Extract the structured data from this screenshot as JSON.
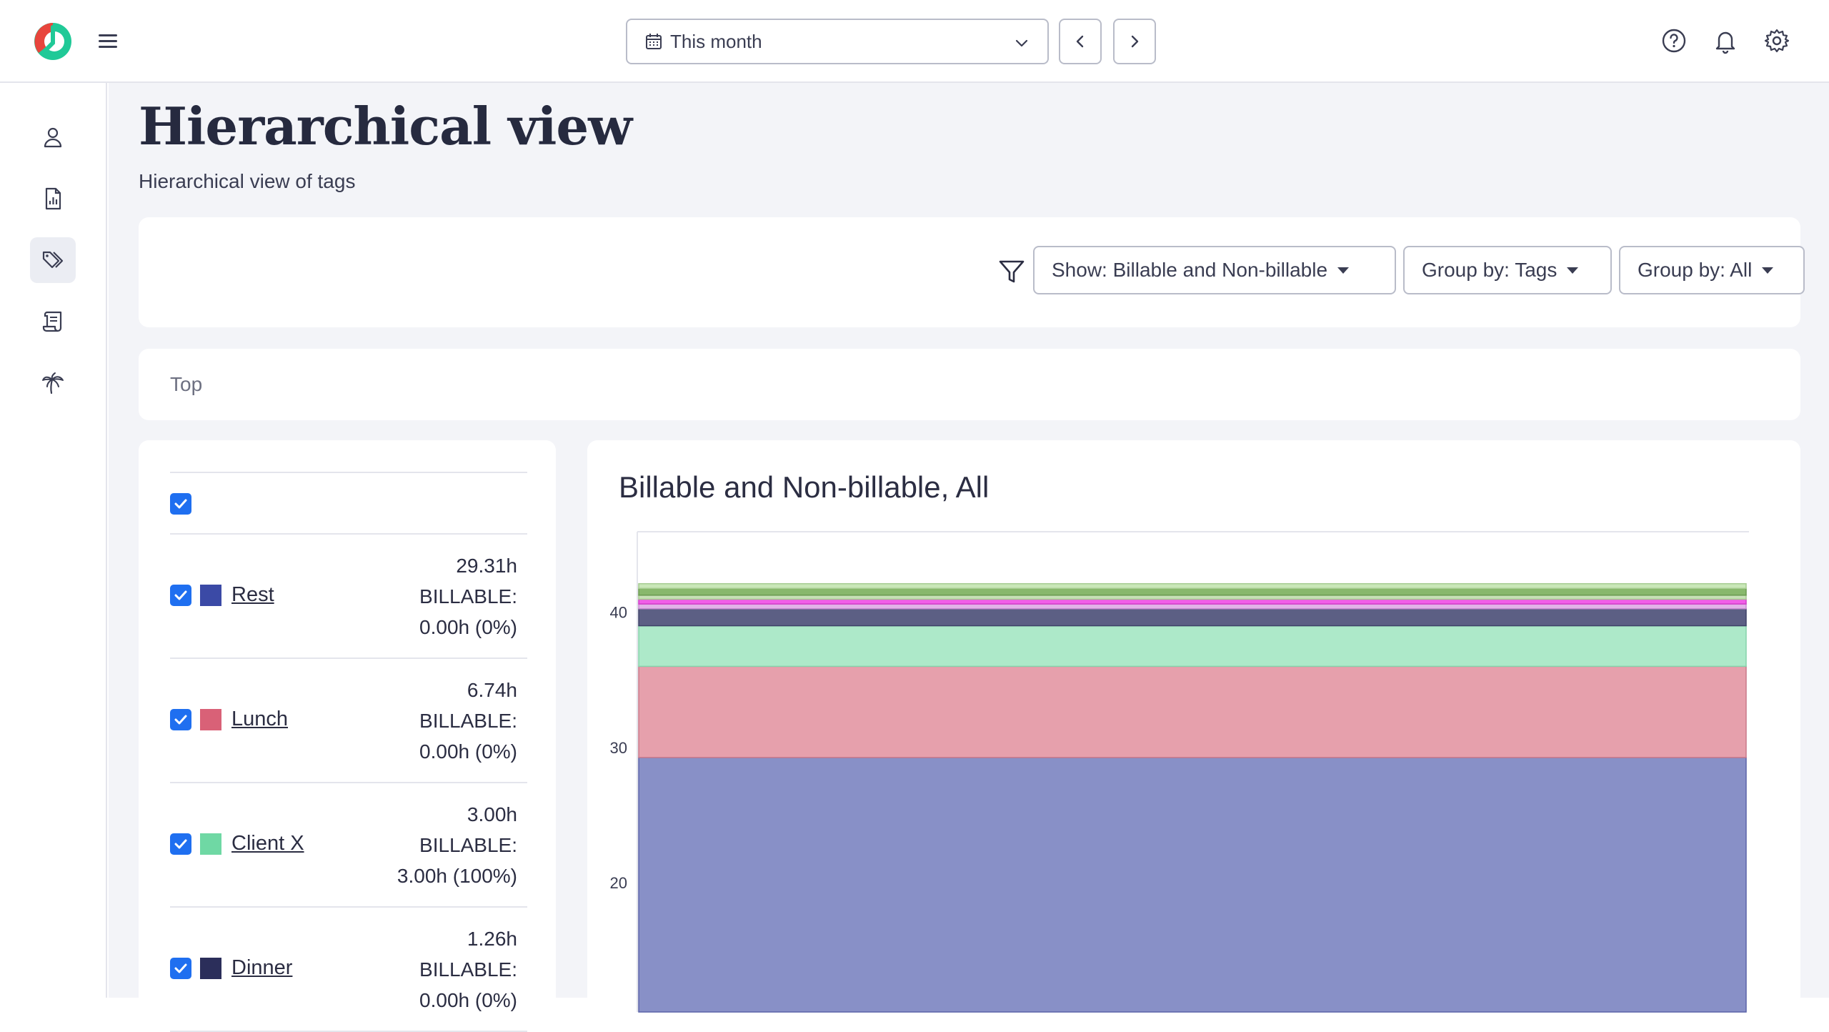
{
  "header": {
    "date_range": "This month",
    "icons": [
      "logo",
      "hamburger-icon",
      "calendar-icon",
      "chevron-down-icon",
      "chevron-left-icon",
      "chevron-right-icon",
      "help-icon",
      "bell-icon",
      "gear-icon"
    ]
  },
  "sidebar": {
    "items": [
      {
        "name": "user-icon",
        "active": false
      },
      {
        "name": "report-icon",
        "active": false
      },
      {
        "name": "tags-icon",
        "active": true
      },
      {
        "name": "scroll-icon",
        "active": false
      },
      {
        "name": "palm-tree-icon",
        "active": false
      }
    ]
  },
  "page": {
    "title": "Hierarchical view",
    "subtitle": "Hierarchical view of tags"
  },
  "filters": {
    "show": "Show: Billable and Non-billable",
    "group_tags": "Group by: Tags",
    "group_all": "Group by: All"
  },
  "breadcrumb": "Top",
  "tags": [
    {
      "name": "Rest",
      "color": "#3b4aa6",
      "hours": "29.31h",
      "billable_label": "BILLABLE:",
      "billable": "0.00h (0%)"
    },
    {
      "name": "Lunch",
      "color": "#d96177",
      "hours": "6.74h",
      "billable_label": "BILLABLE:",
      "billable": "0.00h (0%)"
    },
    {
      "name": "Client X",
      "color": "#6fd8a4",
      "hours": "3.00h",
      "billable_label": "BILLABLE:",
      "billable": "3.00h (100%)"
    },
    {
      "name": "Dinner",
      "color": "#2b2e5a",
      "hours": "1.26h",
      "billable_label": "BILLABLE:",
      "billable": "0.00h (0%)"
    }
  ],
  "chart_data": {
    "type": "area",
    "title": "Billable and Non-billable, All",
    "xlabel": "",
    "ylabel": "",
    "ylim": [
      10.5,
      46
    ],
    "yticks": [
      20,
      30,
      40
    ],
    "grid": false,
    "series": [
      {
        "name": "Rest",
        "value": 29.31,
        "fill": "#8890c7",
        "stroke": "#5a63a8"
      },
      {
        "name": "Lunch",
        "value": 6.74,
        "fill": "#e6a0ac",
        "stroke": "#c9798a"
      },
      {
        "name": "Client X",
        "value": 3.0,
        "fill": "#ade9c9",
        "stroke": "#86d3ab"
      },
      {
        "name": "Dinner",
        "value": 1.26,
        "fill": "#5c5f84",
        "stroke": "#3f4268"
      },
      {
        "fill": "#e2b3e8",
        "stroke": "#c98bd3",
        "value": 0.35
      },
      {
        "fill": "#f15ee8",
        "stroke": "#d13ec8",
        "value": 0.35
      },
      {
        "fill": "#c7e0b6",
        "stroke": "#a6c890",
        "value": 0.3
      },
      {
        "fill": "#88b86c",
        "stroke": "#6a9a50",
        "value": 0.5
      },
      {
        "fill": "#c9e7b8",
        "stroke": "#a5cc90",
        "value": 0.35
      }
    ]
  }
}
